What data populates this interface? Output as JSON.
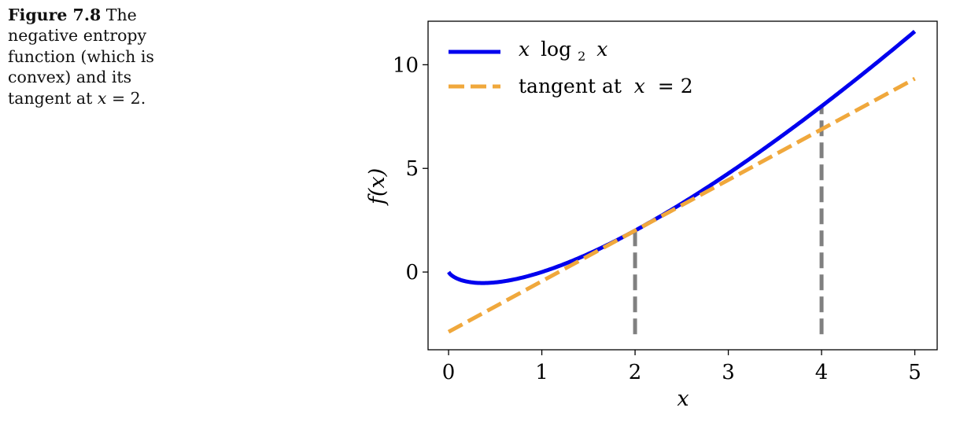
{
  "caption": {
    "label": "Figure 7.8",
    "text_a": "The negative entropy function (which is convex) and its tangent at",
    "math_var": "x",
    "text_b": "= 2."
  },
  "chart_data": {
    "type": "line",
    "xlabel": "x",
    "ylabel": "f(x)",
    "xlim": [
      -0.22,
      5.24
    ],
    "ylim": [
      -3.75,
      12.1
    ],
    "xticks": [
      0,
      1,
      2,
      3,
      4,
      5
    ],
    "yticks": [
      0,
      5,
      10
    ],
    "grid": false,
    "legend_position": "top-left",
    "series": [
      {
        "name": "x log2 x",
        "legend_parts": [
          "x",
          "log",
          "2",
          "x"
        ],
        "color": "#0000ee",
        "style": "solid",
        "function": "x*log2(x)",
        "domain": [
          0,
          5
        ]
      },
      {
        "name": "tangent at x = 2",
        "legend_parts": [
          "tangent at ",
          "x",
          " = 2"
        ],
        "color": "#f0a83c",
        "style": "dashed",
        "function": "2 + (1/ln2 + 1)*(x-2)",
        "domain": [
          0,
          5
        ]
      }
    ],
    "guides": [
      {
        "x": 2,
        "y_from": -3,
        "y_to": 2,
        "color": "#808080",
        "style": "dashed"
      },
      {
        "x": 4,
        "y_from": -3,
        "y_to": 8,
        "color": "#808080",
        "style": "dashed"
      }
    ]
  }
}
